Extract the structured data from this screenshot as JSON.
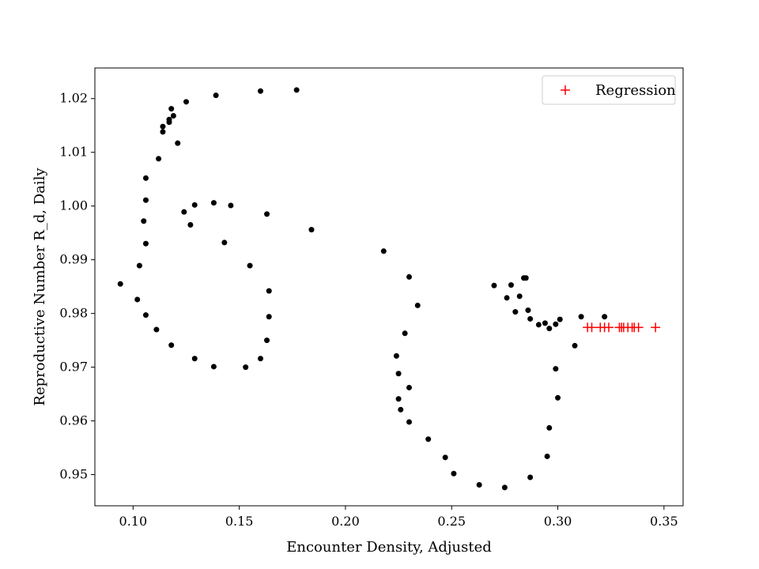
{
  "chart_data": {
    "type": "scatter",
    "title": "",
    "xlabel": "Encounter Density, Adjusted",
    "ylabel": "Reproductive Number R_d, Daily",
    "xlim": [
      0.082,
      0.359
    ],
    "ylim": [
      0.9442,
      1.0257
    ],
    "x_ticks": [
      0.1,
      0.15,
      0.2,
      0.25,
      0.3,
      0.35
    ],
    "x_tick_labels": [
      "0.10",
      "0.15",
      "0.20",
      "0.25",
      "0.30",
      "0.35"
    ],
    "y_ticks": [
      0.95,
      0.96,
      0.97,
      0.98,
      0.99,
      1.0,
      1.01,
      1.02
    ],
    "y_tick_labels": [
      "0.95",
      "0.96",
      "0.97",
      "0.98",
      "0.99",
      "1.00",
      "1.01",
      "1.02"
    ],
    "grid": false,
    "legend_position": "top-right",
    "colors": {
      "observed": "#000000",
      "regression": "#ff0000"
    },
    "series": [
      {
        "marker": "dot",
        "color": "#000000",
        "x": [
          0.177,
          0.16,
          0.139,
          0.125,
          0.118,
          0.119,
          0.117,
          0.117,
          0.114,
          0.114,
          0.121,
          0.112,
          0.106,
          0.106,
          0.105,
          0.106,
          0.103,
          0.094,
          0.102,
          0.106,
          0.111,
          0.118,
          0.129,
          0.138,
          0.153,
          0.16,
          0.163,
          0.164,
          0.164,
          0.155,
          0.143,
          0.127,
          0.124,
          0.129,
          0.138,
          0.146,
          0.163,
          0.184,
          0.218,
          0.23,
          0.234,
          0.228,
          0.224,
          0.225,
          0.23,
          0.225,
          0.226,
          0.23,
          0.239,
          0.247,
          0.251,
          0.263,
          0.275,
          0.287,
          0.295,
          0.296,
          0.3,
          0.299,
          0.308,
          0.311,
          0.322,
          0.301,
          0.299,
          0.296,
          0.294,
          0.291,
          0.287,
          0.286,
          0.285,
          0.284,
          0.282,
          0.28,
          0.278,
          0.276,
          0.27
        ],
        "y": [
          1.0216,
          1.0214,
          1.0206,
          1.0194,
          1.0181,
          1.0168,
          1.0161,
          1.0156,
          1.0148,
          1.0138,
          1.0117,
          1.0088,
          1.0052,
          1.0011,
          0.9972,
          0.993,
          0.9889,
          0.9855,
          0.9826,
          0.9797,
          0.977,
          0.9741,
          0.9716,
          0.9701,
          0.97,
          0.9716,
          0.975,
          0.9794,
          0.9842,
          0.9889,
          0.9932,
          0.9965,
          0.9989,
          1.0002,
          1.0006,
          1.0001,
          0.9985,
          0.9956,
          0.9916,
          0.9868,
          0.9815,
          0.9763,
          0.9721,
          0.9688,
          0.9662,
          0.9641,
          0.9621,
          0.9598,
          0.9566,
          0.9532,
          0.9502,
          0.9481,
          0.9476,
          0.9495,
          0.9534,
          0.9587,
          0.9643,
          0.9697,
          0.974,
          0.9794,
          0.9794,
          0.9789,
          0.978,
          0.9772,
          0.9782,
          0.9779,
          0.979,
          0.9806,
          0.9866,
          0.9866,
          0.9832,
          0.9803,
          0.9853,
          0.9829,
          0.9852
        ]
      },
      {
        "name": "Regression",
        "marker": "plus",
        "color": "#ff0000",
        "x": [
          0.314,
          0.316,
          0.32,
          0.322,
          0.324,
          0.329,
          0.33,
          0.331,
          0.333,
          0.335,
          0.336,
          0.338,
          0.346
        ],
        "y": [
          0.9774,
          0.9774,
          0.9774,
          0.9774,
          0.9774,
          0.9774,
          0.9774,
          0.9774,
          0.9774,
          0.9774,
          0.9774,
          0.9774,
          0.9774
        ]
      }
    ]
  }
}
